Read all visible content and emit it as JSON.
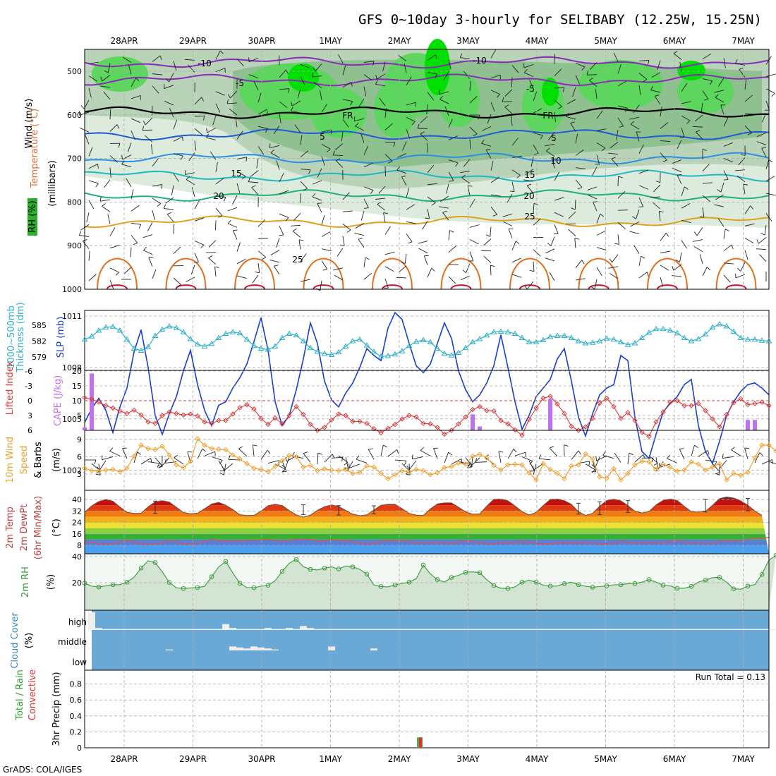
{
  "title": "GFS 0~10day 3-hourly for SELIBABY (12.25W, 15.25N)",
  "dates": [
    "28APR",
    "29APR",
    "30APR",
    "1MAY",
    "2MAY",
    "3MAY",
    "4MAY",
    "5MAY",
    "6MAY",
    "7MAY"
  ],
  "credit": "GrADS: COLA/IGES",
  "colors": {
    "wind_barb": "#222222",
    "lifted": "#d83c3c",
    "cape": "#c070f0",
    "slp": "#1a3fc8",
    "thick": "#30b0c8",
    "wind10": "#f0a030",
    "rh": "#3a9a3a",
    "cloud": "#6aa9d6"
  },
  "chart_data": [
    {
      "type": "contour",
      "name": "upper-air",
      "ylabels": [
        "RH (%)",
        "Temperature (°C)",
        "Wind (m/s)",
        "(millibars)"
      ],
      "yticks": [
        500,
        600,
        700,
        800,
        900,
        1000
      ],
      "ylim": [
        1000,
        450
      ],
      "contour_labels": [
        "-10",
        "-5",
        "FR",
        "5",
        "10",
        "15",
        "20",
        "25"
      ],
      "isotherms": [
        {
          "t": -10,
          "p": 480,
          "color": "#8a2ab8"
        },
        {
          "t": -5,
          "p": 520,
          "color": "#8a2ab8"
        },
        {
          "t": 0,
          "p": 595,
          "color": "#000000"
        },
        {
          "t": 5,
          "p": 645,
          "color": "#1f5ad6"
        },
        {
          "t": 10,
          "p": 700,
          "color": "#2a90e0"
        },
        {
          "t": 15,
          "p": 740,
          "color": "#20b8c0"
        },
        {
          "t": 20,
          "p": 785,
          "color": "#20b080"
        },
        {
          "t": 25,
          "p": 845,
          "color": "#e0a020"
        }
      ]
    },
    {
      "type": "line",
      "name": "slp-thickness",
      "ylabels": [
        "1000~500mb",
        "Thickness (dm)",
        "SLP (mb)"
      ],
      "left_ticks": [
        585,
        582,
        579
      ],
      "right_ticks": [
        1011,
        1008,
        1005,
        1002
      ],
      "series": [
        {
          "name": "SLP",
          "values": [
            1004.8,
            1005.6,
            1006.2,
            1005.5,
            1004.2,
            1005.7,
            1006.8,
            1008.9,
            1010.2,
            1008.0,
            1005.2,
            1004.1,
            1005.3,
            1006.3,
            1007.8,
            1009.0,
            1007.0,
            1005.5,
            1004.6,
            1005.8,
            1006.0,
            1006.8,
            1007.4,
            1008.2,
            1009.5,
            1010.9,
            1009.0,
            1006.0,
            1004.6,
            1005.2,
            1006.7,
            1008.5,
            1010.6,
            1009.4,
            1007.2,
            1006.1,
            1005.7,
            1006.5,
            1007.1,
            1008.0,
            1009.1,
            1008.7,
            1008.4,
            1010.3,
            1011.2,
            1010.8,
            1009.4,
            1008.1,
            1007.7,
            1008.2,
            1009.4,
            1010.6,
            1009.7,
            1007.8,
            1006.7,
            1006.0,
            1006.4,
            1007.1,
            1008.1,
            1009.9,
            1008.0,
            1006.0,
            1004.4,
            1005.2,
            1006.3,
            1006.8,
            1007.3,
            1008.5,
            1009.1,
            1007.2,
            1005.1,
            1004.0,
            1005.3,
            1006.4,
            1006.8,
            1007.0,
            1008.7,
            1008.4,
            1005.1,
            1003.1,
            1002.7,
            1004.1,
            1005.4,
            1005.9,
            1006.3,
            1007.0,
            1007.3,
            1004.6,
            1003.1,
            1002.4,
            1003.7,
            1005.2,
            1006.0,
            1006.6,
            1007.0,
            1007.1,
            1006.8,
            1006.4
          ]
        },
        {
          "name": "Thickness",
          "values": [
            582.3,
            582.9,
            584.0,
            584.6,
            584.7,
            584.0,
            582.3,
            580.6,
            580.2,
            580.9,
            583.0,
            584.2,
            584.8,
            584.5,
            583.7,
            582.4,
            581.4,
            581.0,
            581.5,
            582.6,
            583.4,
            583.7,
            583.5,
            582.3,
            581.1,
            580.6,
            580.4,
            581.0,
            582.6,
            583.4,
            583.1,
            582.0,
            580.7,
            580.0,
            579.6,
            579.4,
            579.9,
            581.0,
            582.0,
            582.3,
            581.2,
            580.0,
            579.1,
            579.2,
            579.5,
            580.1,
            581.1,
            581.9,
            582.2,
            581.8,
            580.6,
            579.6,
            579.3,
            579.8,
            580.7,
            581.8,
            582.4,
            583.1,
            583.7,
            583.8,
            583.7,
            583.4,
            582.6,
            581.8,
            581.8,
            582.2,
            582.8,
            583.0,
            583.0,
            582.6,
            582.0,
            581.6,
            581.7,
            582.0,
            582.5,
            582.3,
            581.8,
            581.3,
            581.6,
            582.6,
            583.6,
            584.3,
            584.3,
            584.0,
            583.5,
            582.6,
            582.0,
            582.4,
            583.3,
            584.6,
            585.2,
            584.8,
            583.8,
            582.6,
            582.3,
            582.3,
            582.1,
            582.0
          ]
        }
      ]
    },
    {
      "type": "line+bar",
      "name": "lifted-cape",
      "ylabels": [
        "Lifted Index",
        "CAPE (J/kg)"
      ],
      "left_ticks": [
        -6,
        -3,
        0,
        3,
        6
      ],
      "right_ticks": [
        20,
        15,
        10,
        5
      ],
      "lifted_index": [
        -0.6,
        -0.3,
        0.3,
        1.0,
        1.5,
        2.1,
        2.6,
        1.9,
        2.9,
        4.3,
        4.6,
        3.0,
        2.3,
        2.6,
        2.9,
        2.7,
        3.1,
        4.3,
        4.6,
        4.0,
        4.0,
        2.7,
        1.4,
        0.8,
        1.7,
        3.6,
        4.8,
        3.5,
        4.7,
        3.0,
        1.2,
        2.8,
        4.8,
        6.0,
        5.4,
        3.9,
        2.7,
        3.0,
        4.2,
        4.2,
        4.6,
        5.7,
        6.5,
        5.6,
        4.8,
        3.7,
        3.0,
        3.3,
        4.6,
        4.7,
        5.4,
        6.8,
        6.0,
        4.7,
        3.3,
        1.8,
        1.2,
        2.0,
        2.1,
        4.0,
        4.7,
        5.9,
        7.0,
        3.8,
        1.5,
        -0.5,
        -0.9,
        0.7,
        2.6,
        5.2,
        6.0,
        5.3,
        3.6,
        0.5,
        -0.5,
        1.2,
        3.6,
        2.4,
        4.0,
        6.4,
        7.2,
        4.3,
        2.3,
        0.3,
        0.0,
        1.0,
        1.0,
        0.6,
        2.0,
        3.7,
        5.3,
        2.8,
        0.4,
        -0.4,
        0.8,
        0.6,
        0.3,
        1.0
      ],
      "cape": [
        {
          "i": 0,
          "v": 1.0
        },
        {
          "i": 1,
          "v": 19.2
        },
        {
          "i": 55,
          "v": 5.4
        },
        {
          "i": 56,
          "v": 1.3
        },
        {
          "i": 66,
          "v": 10.6
        },
        {
          "i": 94,
          "v": 3.5
        },
        {
          "i": 95,
          "v": 3.5
        }
      ]
    },
    {
      "type": "line",
      "name": "wind10",
      "ylabels": [
        "10m Wind",
        "Speed",
        "& Barbs",
        "(m/s)"
      ],
      "yticks": [
        9,
        6,
        3
      ],
      "values": [
        4.0,
        3.6,
        3.5,
        3.7,
        3.8,
        3.4,
        4.0,
        6.1,
        8.0,
        7.4,
        7.2,
        7.8,
        6.3,
        4.6,
        4.1,
        5.2,
        9.1,
        8.0,
        7.4,
        7.3,
        7.2,
        6.3,
        5.6,
        4.8,
        4.0,
        3.8,
        3.4,
        4.3,
        5.3,
        6.2,
        6.0,
        4.2,
        4.5,
        3.6,
        3.9,
        3.7,
        3.6,
        3.8,
        3.1,
        3.3,
        4.4,
        4.2,
        3.1,
        2.2,
        2.9,
        3.6,
        3.3,
        3.8,
        3.6,
        2.9,
        3.2,
        4.1,
        4.3,
        4.9,
        4.7,
        6.1,
        6.4,
        5.8,
        4.5,
        3.7,
        4.6,
        4.7,
        4.6,
        3.2,
        2.0,
        4.8,
        3.8,
        3.1,
        2.2,
        4.4,
        4.6,
        6.5,
        5.6,
        2.5,
        2.3,
        3.9,
        2.0,
        3.1,
        4.6,
        5.2,
        5.1,
        3.8,
        4.7,
        4.2,
        3.5,
        3.7,
        5.1,
        4.7,
        3.7,
        4.2,
        4.8,
        2.0,
        3.1,
        2.8,
        3.3,
        5.8,
        8.0,
        8.0,
        7.0
      ]
    },
    {
      "type": "area",
      "name": "temp2m",
      "ylabels": [
        "2m Temp",
        "2m DewPt",
        "(6hr Min/Max)",
        "(°C)"
      ],
      "yticks": [
        40,
        32,
        24,
        16,
        8
      ],
      "temperature": [
        31.0,
        35.6,
        38.6,
        40.0,
        38.8,
        34.8,
        31.1,
        30.3,
        30.4,
        34.9,
        38.3,
        39.2,
        38.2,
        34.6,
        30.9,
        30.0,
        30.4,
        33.5,
        36.8,
        38.0,
        36.0,
        33.0,
        29.4,
        28.8,
        29.0,
        31.9,
        35.7,
        36.6,
        35.8,
        32.3,
        29.3,
        27.7,
        29.1,
        32.5,
        35.0,
        36.2,
        35.1,
        32.4,
        29.7,
        28.7,
        29.3,
        32.7,
        36.0,
        36.6,
        36.6,
        33.6,
        30.2,
        29.1,
        28.9,
        33.4,
        36.9,
        37.6,
        37.6,
        34.6,
        31.4,
        29.7,
        29.9,
        35.4,
        40.1,
        40.3,
        39.1,
        35.5,
        31.6,
        29.2,
        31.0,
        35.8,
        40.0,
        40.3,
        39.2,
        36.6,
        31.5,
        28.9,
        30.3,
        35.3,
        39.3,
        40.1,
        39.1,
        35.8,
        31.9,
        30.6,
        31.6,
        36.3,
        39.4,
        40.3,
        39.3,
        35.2,
        31.5,
        31.2,
        31.8,
        36.0,
        40.6,
        41.8,
        41.0,
        39.1,
        36.0,
        32.0,
        29.0
      ],
      "dewpoint": [
        10.5,
        10.0,
        9.0,
        8.6,
        9.1,
        10.4,
        11.0,
        10.4,
        9.0,
        8.6,
        8.8,
        10.0,
        10.8,
        10.6,
        9.0,
        8.6,
        9.1,
        10.8,
        12.4,
        11.4,
        11.0,
        10.6,
        10.9,
        11.6,
        11.6,
        11.7,
        12.1,
        11.5,
        10.8,
        11.5,
        12.2,
        12.4,
        12.0,
        11.0,
        11.0,
        11.9,
        11.6,
        11.0,
        10.5,
        9.6,
        9.2,
        9.5,
        10.5,
        11.1,
        11.4,
        11.0,
        10.5,
        10.0,
        9.6,
        9.6,
        9.9,
        9.5,
        9.5,
        10.4,
        10.9,
        10.6,
        9.9,
        9.1,
        9.3,
        9.7,
        9.7,
        10.2,
        10.5,
        10.2,
        9.4,
        9.0,
        9.0,
        9.9,
        10.0,
        9.7,
        9.5,
        9.9,
        9.4,
        9.0,
        9.2,
        9.6,
        10.6,
        10.2,
        9.7,
        9.8,
        10.1,
        10.1,
        9.9,
        10.6,
        10.7,
        10.4,
        9.9,
        9.4,
        9.4,
        9.6,
        10.6,
        11.3,
        11.2,
        11.1,
        12.3,
        12.9,
        13.0,
        13.6
      ],
      "maxmin_bars": [
        {
          "i": 10,
          "max": 38.9,
          "min": 30.4
        },
        {
          "i": 31,
          "max": 36.3,
          "min": 29.5
        },
        {
          "i": 36,
          "max": 35.7,
          "min": 29.1
        },
        {
          "i": 41,
          "max": 35.6,
          "min": 30.0
        },
        {
          "i": 70,
          "max": 37.4,
          "min": 29.8
        },
        {
          "i": 73,
          "max": 38.4,
          "min": 29.4
        },
        {
          "i": 77,
          "max": 39.2,
          "min": 31.0
        },
        {
          "i": 88,
          "max": 40.1,
          "min": 31.3
        },
        {
          "i": 94,
          "max": 40.8,
          "min": 32.1
        }
      ]
    },
    {
      "type": "area",
      "name": "rh2m",
      "ylabels": [
        "2m RH",
        "(%)"
      ],
      "yticks": [
        40,
        20
      ],
      "values": [
        19.7,
        17.3,
        16.7,
        17.6,
        18.5,
        18.5,
        20.4,
        24.2,
        31.2,
        36.8,
        35.4,
        28.3,
        20.2,
        16.1,
        15.6,
        16.0,
        16.3,
        17.2,
        24.6,
        32.1,
        36.3,
        27.5,
        19.6,
        16.3,
        16.2,
        17.3,
        18.0,
        21.5,
        28.6,
        34.9,
        37.8,
        32.4,
        30.2,
        29.8,
        31.2,
        32.1,
        30.5,
        32.8,
        32.1,
        30.2,
        26.6,
        18.3,
        17.1,
        16.8,
        18.3,
        19.5,
        20.4,
        23.1,
        33.5,
        26.8,
        22.4,
        20.5,
        24.0,
        25.7,
        27.9,
        28.3,
        27.7,
        22.3,
        17.8,
        15.8,
        15.5,
        16.8,
        20.4,
        21.9,
        20.4,
        18.1,
        17.4,
        17.4,
        19.3,
        20.4,
        18.5,
        17.3,
        16.6,
        17.0,
        17.6,
        18.4,
        18.5,
        19.3,
        19.4,
        20.4,
        22.4,
        20.5,
        18.1,
        17.5,
        15.8,
        15.8,
        17.2,
        20.5,
        22.0,
        23.9,
        24.1,
        20.4,
        15.3,
        15.0,
        17.4,
        18.6,
        26.4,
        37.3,
        40.9
      ]
    },
    {
      "type": "heatmap",
      "name": "cloud-cover",
      "ylabels": [
        "Cloud Cover",
        "(%)"
      ],
      "levels": [
        "high",
        "middle",
        "low"
      ],
      "high": [
        0.9,
        0.1,
        0.05,
        0.05,
        0.05,
        0.05,
        0.05,
        0.05,
        0.05,
        0.05,
        0.05,
        0.05,
        0.05,
        0.05,
        0.05,
        0.05,
        0.05,
        0.05,
        0.05,
        0.3,
        0.1,
        0.05,
        0.05,
        0.05,
        0.05,
        0.1,
        0.05,
        0.05,
        0.1,
        0.05,
        0.2,
        0.1,
        0.05,
        0.05,
        0.05,
        0.05,
        0.05,
        0.05,
        0.05,
        0.05,
        0.05,
        0.05,
        0.05,
        0.05,
        0.05,
        0.05,
        0.05,
        0.05,
        0.05,
        0.05,
        0.05,
        0.05,
        0.05,
        0.05,
        0.05,
        0.05,
        0.05,
        0.05,
        0.05,
        0.05,
        0.05,
        0.05,
        0.05,
        0.05,
        0.05,
        0.05,
        0.05,
        0.05,
        0.05,
        0.05,
        0.05,
        0.05,
        0.05,
        0.05,
        0.05,
        0.05,
        0.05,
        0.05,
        0.05,
        0.05,
        0.05,
        0.05,
        0.05,
        0.05,
        0.05,
        0.05,
        0.05,
        0.05,
        0.05,
        0.05,
        0.05,
        0.05,
        0.05,
        0.05,
        0.05,
        0.05,
        0.05,
        0.05
      ],
      "middle": [
        0.0,
        0.0,
        0.0,
        0.0,
        0.0,
        0.0,
        0.0,
        0.0,
        0.0,
        0.0,
        0.0,
        0.05,
        0.0,
        0.0,
        0.0,
        0.0,
        0.0,
        0.0,
        0.0,
        0.0,
        0.2,
        0.15,
        0.1,
        0.2,
        0.15,
        0.1,
        0.05,
        0.0,
        0.0,
        0.0,
        0.0,
        0.0,
        0.0,
        0.0,
        0.2,
        0.0,
        0.0,
        0.0,
        0.0,
        0.0,
        0.1,
        0.0,
        0.0,
        0.0,
        0.0,
        0.0,
        0.0,
        0.0,
        0.0,
        0.0,
        0.0,
        0.0,
        0.0,
        0.0,
        0.0,
        0.0,
        0.0,
        0.0,
        0.0,
        0.0,
        0.0,
        0.0,
        0.0,
        0.0,
        0.0,
        0.0,
        0.0,
        0.0,
        0.0,
        0.0,
        0.0,
        0.0,
        0.0,
        0.0,
        0.0,
        0.0,
        0.0,
        0.0,
        0.0,
        0.0,
        0.0,
        0.0,
        0.0,
        0.0,
        0.0,
        0.0,
        0.0,
        0.0,
        0.0,
        0.0,
        0.0,
        0.0,
        0.0,
        0.0,
        0.0,
        0.0,
        0.0,
        0.0
      ],
      "low": [
        0.0,
        0.0,
        0.0,
        0.0,
        0.0,
        0.0,
        0.0,
        0.0,
        0.0,
        0.0,
        0.0,
        0.0,
        0.0,
        0.0,
        0.0,
        0.0,
        0.0,
        0.0,
        0.0,
        0.0,
        0.0,
        0.0,
        0.0,
        0.0,
        0.0,
        0.0,
        0.0,
        0.0,
        0.0,
        0.0,
        0.0,
        0.0,
        0.0,
        0.0,
        0.0,
        0.0,
        0.0,
        0.0,
        0.0,
        0.0,
        0.0,
        0.0,
        0.0,
        0.0,
        0.0,
        0.0,
        0.0,
        0.0,
        0.0,
        0.0,
        0.0,
        0.0,
        0.0,
        0.0,
        0.0,
        0.0,
        0.0,
        0.0,
        0.0,
        0.0,
        0.0,
        0.0,
        0.0,
        0.0,
        0.0,
        0.0,
        0.0,
        0.0,
        0.0,
        0.0,
        0.0,
        0.0,
        0.0,
        0.0,
        0.0,
        0.0,
        0.0,
        0.0,
        0.0,
        0.0,
        0.0,
        0.0,
        0.0,
        0.0,
        0.0,
        0.0,
        0.0,
        0.0,
        0.0,
        0.0,
        0.0,
        0.0,
        0.0,
        0.0,
        0.0,
        0.0,
        0.0,
        0.0
      ]
    },
    {
      "type": "bar",
      "name": "precip3hr",
      "ylabels": [
        "Total / Rain",
        "Convective",
        "3hr Precip (mm)"
      ],
      "yticks": [
        0,
        0.2,
        0.4,
        0.6,
        0.8
      ],
      "ylim": [
        0,
        1
      ],
      "run_total_label": "Run Total = 0.13",
      "bars": [
        {
          "i": 46,
          "total": 0.13,
          "convective": 0.13
        }
      ]
    }
  ]
}
